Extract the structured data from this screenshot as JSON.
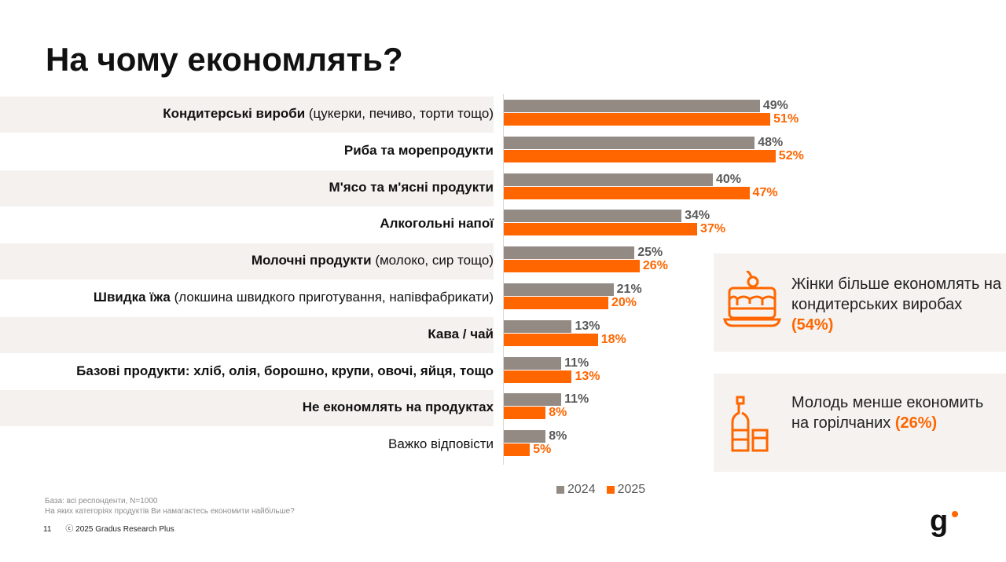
{
  "title": "На чому економлять?",
  "chart_data": {
    "type": "bar",
    "orientation": "horizontal",
    "categories": [
      {
        "bold": "Кондитерські вироби",
        "normal": " (цукерки, печиво, торти тощо)"
      },
      {
        "bold": "Риба та морепродукти",
        "normal": ""
      },
      {
        "bold": "М'ясо та м'ясні продукти",
        "normal": ""
      },
      {
        "bold": "Алкогольні напої",
        "normal": ""
      },
      {
        "bold": "Молочні продукти",
        "normal": " (молоко, сир тощо)"
      },
      {
        "bold": "Швидка їжа",
        "normal": " (локшина швидкого приготування, напівфабрикати)"
      },
      {
        "bold": "Кава / чай",
        "normal": ""
      },
      {
        "bold": "Базові продукти: хліб, олія, борошно, крупи, овочі, яйця, тощо",
        "normal": ""
      },
      {
        "bold": "Не економлять на продуктах",
        "normal": ""
      },
      {
        "bold": "",
        "normal": "Важко відповісти"
      }
    ],
    "series": [
      {
        "name": "2024",
        "color": "#938a84",
        "values": [
          49,
          48,
          40,
          34,
          25,
          21,
          13,
          11,
          11,
          8
        ],
        "labels": [
          "49%",
          "48%",
          "40%",
          "34%",
          "25%",
          "21%",
          "13%",
          "11%",
          "11%",
          "8%"
        ]
      },
      {
        "name": "2025",
        "color": "#ff6600",
        "values": [
          51,
          52,
          47,
          37,
          26,
          20,
          18,
          13,
          8,
          5
        ],
        "labels": [
          "51%",
          "52%",
          "47%",
          "37%",
          "26%",
          "20%",
          "18%",
          "13%",
          "8%",
          "5%"
        ]
      }
    ],
    "xlim": [
      0,
      100
    ],
    "legend": "bottom",
    "grid": false
  },
  "cards": [
    {
      "icon": "cake-icon",
      "text": "Жінки більше економлять на кондитерських виробах ",
      "highlight": "(54%)"
    },
    {
      "icon": "bottle-glass-icon",
      "text": "Молодь менше економить на горілчаних ",
      "highlight": "(26%)"
    }
  ],
  "note": {
    "base": "База: всі респонденти, N=1000",
    "question": "На яких категоріях продуктів Ви намагаєтесь економити найбільше?"
  },
  "footer": {
    "page": "11",
    "copyright": "ⓒ 2025 Gradus Research Plus"
  },
  "logo": "g"
}
